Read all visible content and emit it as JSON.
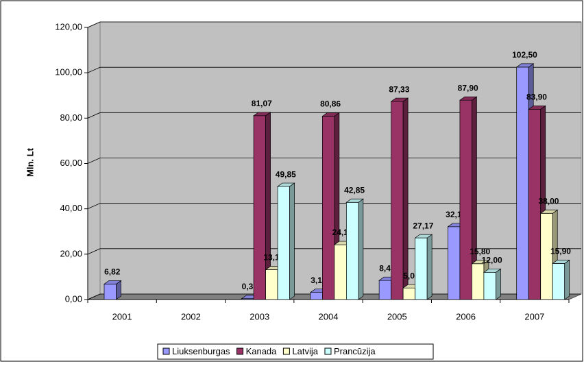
{
  "chart_data": {
    "type": "bar3d",
    "y_label": "Mln. Lt",
    "categories": [
      "2001",
      "2002",
      "2003",
      "2004",
      "2005",
      "2006",
      "2007"
    ],
    "series": [
      {
        "name": "Liuksenburgas",
        "color": "#9999ff",
        "values": [
          6.82,
          null,
          0.37,
          3.11,
          8.41,
          32.1,
          102.5
        ],
        "value_labels": [
          "6,82",
          null,
          "0,37",
          "3,11",
          "8,41",
          "32,10",
          "102,50"
        ]
      },
      {
        "name": "Kanada",
        "color": "#993366",
        "values": [
          null,
          null,
          81.07,
          80.86,
          87.33,
          87.9,
          83.9
        ],
        "value_labels": [
          null,
          null,
          "81,07",
          "80,86",
          "87,33",
          "87,90",
          "83,90"
        ]
      },
      {
        "name": "Latvija",
        "color": "#ffffcc",
        "values": [
          null,
          null,
          13.14,
          24.16,
          5.08,
          15.8,
          38.0
        ],
        "value_labels": [
          null,
          null,
          "13,14",
          "24,16",
          "5,08",
          "15,80",
          "38,00"
        ]
      },
      {
        "name": "Prancūzija",
        "color": "#ccffff",
        "values": [
          null,
          null,
          49.85,
          42.85,
          27.17,
          12.0,
          15.9
        ],
        "value_labels": [
          null,
          null,
          "49,85",
          "42,85",
          "27,17",
          "12,00",
          "15,90"
        ]
      }
    ],
    "ylim": [
      0,
      120
    ],
    "yticks": [
      {
        "value": 0,
        "label": "0,00"
      },
      {
        "value": 20,
        "label": "20,00"
      },
      {
        "value": 40,
        "label": "40,00"
      },
      {
        "value": 60,
        "label": "60,00"
      },
      {
        "value": 80,
        "label": "80,00"
      },
      {
        "value": 100,
        "label": "100,00"
      },
      {
        "value": 120,
        "label": "120,00"
      }
    ],
    "grid": true
  }
}
